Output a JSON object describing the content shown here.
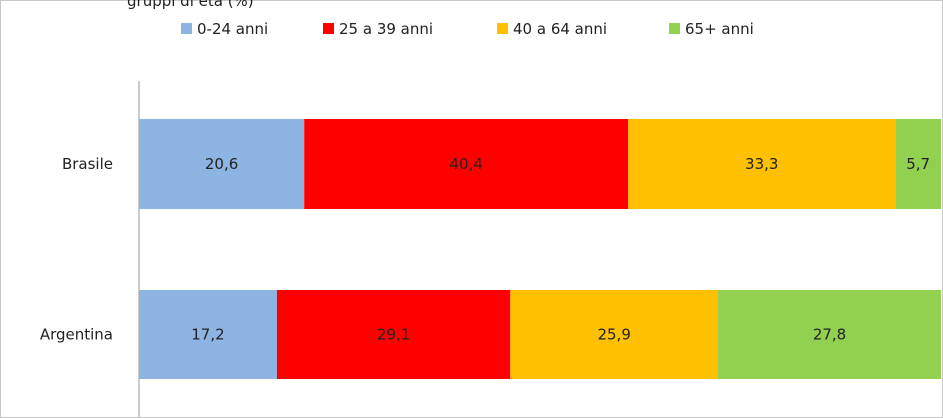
{
  "title_fragment": "gruppi di età (%)",
  "chart_data": {
    "type": "bar",
    "orientation": "horizontal",
    "stacked": true,
    "categories": [
      "Brasile",
      "Argentina"
    ],
    "series": [
      {
        "name": "0-24 anni",
        "color": "#8eb4e3",
        "values": [
          20.6,
          17.2
        ],
        "labels": [
          "20,6",
          "17,2"
        ]
      },
      {
        "name": "25 a 39 anni",
        "color": "#ff0000",
        "values": [
          40.4,
          29.1
        ],
        "labels": [
          "40,4",
          "29,1"
        ]
      },
      {
        "name": "40 a 64 anni",
        "color": "#ffc000",
        "values": [
          33.3,
          25.9
        ],
        "labels": [
          "33,3",
          "25,9"
        ]
      },
      {
        "name": "65+ anni",
        "color": "#92d050",
        "values": [
          5.7,
          27.8
        ],
        "labels": [
          "5,7",
          "27,8"
        ]
      }
    ],
    "legend_position": "top",
    "grid": false,
    "xlim": [
      0,
      100
    ]
  }
}
